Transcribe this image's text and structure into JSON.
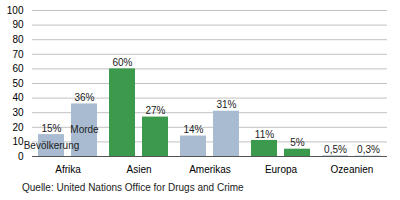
{
  "chart_data": {
    "type": "bar",
    "categories": [
      "Afrika",
      "Asien",
      "Amerikas",
      "Europa",
      "Ozeanien"
    ],
    "series": [
      {
        "name": "Bevölkerung",
        "values": [
          15,
          60,
          14,
          11,
          0.5
        ],
        "value_labels": [
          "15%",
          "60%",
          "14%",
          "11%",
          "0,5%"
        ],
        "colors": [
          "#a8bbd0",
          "#3c9a4c",
          "#a8bbd0",
          "#3c9a4c",
          "#a8bbd0"
        ]
      },
      {
        "name": "Morde",
        "values": [
          36,
          27,
          31,
          5,
          0.3
        ],
        "value_labels": [
          "36%",
          "27%",
          "31%",
          "5%",
          "0,3%"
        ],
        "colors": [
          "#a8bbd0",
          "#3c9a4c",
          "#a8bbd0",
          "#3c9a4c",
          "#a8bbd0"
        ]
      }
    ],
    "ylim": [
      0,
      100
    ],
    "yticks": [
      0,
      10,
      20,
      30,
      40,
      50,
      60,
      70,
      80,
      90,
      100
    ],
    "grid": true,
    "data_labels": true,
    "caption": "Quelle: United Nations Office for Drugs and Crime"
  }
}
